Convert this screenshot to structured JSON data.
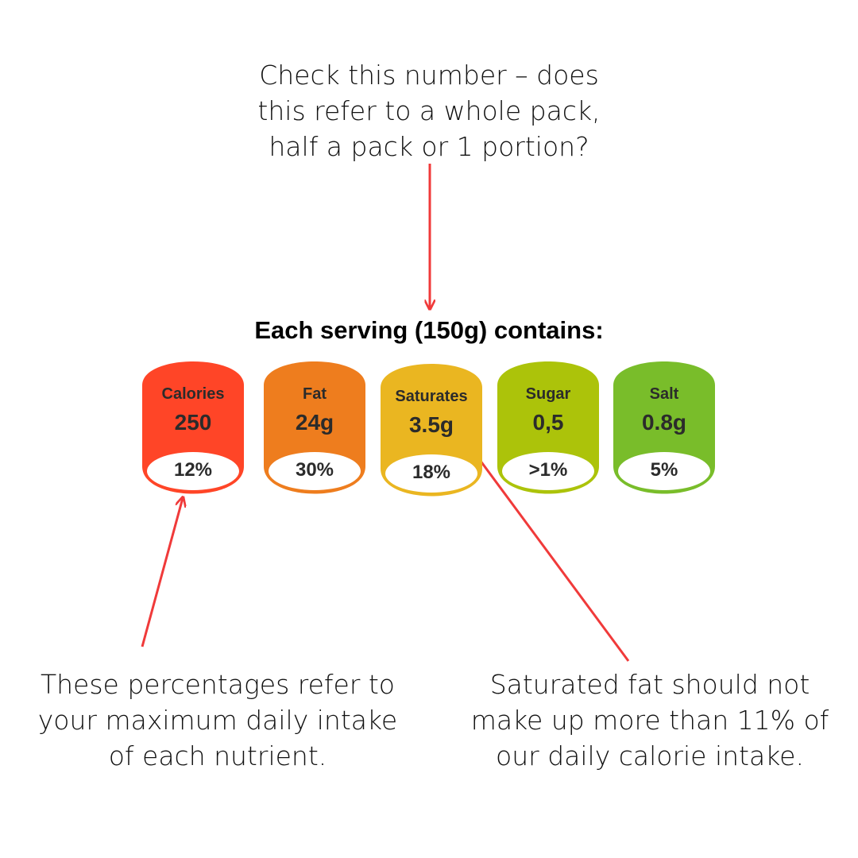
{
  "notes": {
    "top": "Check this number – does\nthis refer to a whole pack,\nhalf a pack or 1 portion?",
    "left": "These percentages refer to\nyour maximum daily intake\nof each nutrient.",
    "right": "Saturated fat should not\nmake up more than 11% of\nour daily calorie intake."
  },
  "heading": "Each serving (150g) contains:",
  "nutrients": [
    {
      "name": "Calories",
      "value": "250",
      "percent": "12%",
      "color": "#ff4527"
    },
    {
      "name": "Fat",
      "value": "24g",
      "percent": "30%",
      "color": "#ee7d1e"
    },
    {
      "name": "Saturates",
      "value": "3.5g",
      "percent": "18%",
      "color": "#eab621"
    },
    {
      "name": "Sugar",
      "value": "0,5",
      "percent": ">1%",
      "color": "#acc30a"
    },
    {
      "name": "Salt",
      "value": "0.8g",
      "percent": "5%",
      "color": "#79bd2a"
    }
  ],
  "arrow_color": "#f03a3a"
}
